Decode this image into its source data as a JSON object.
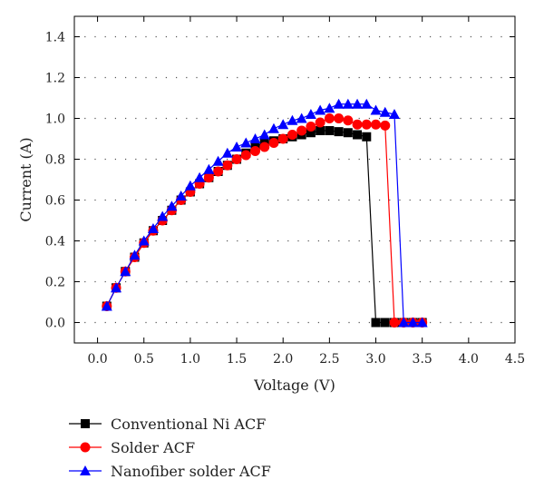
{
  "chart_data": {
    "type": "line",
    "xlabel": "Voltage (V)",
    "ylabel": "Current (A)",
    "xlim": [
      -0.25,
      4.5
    ],
    "ylim": [
      -0.1,
      1.5
    ],
    "xticks": [
      0.0,
      0.5,
      1.0,
      1.5,
      2.0,
      2.5,
      3.0,
      3.5,
      4.0,
      4.5
    ],
    "xtick_labels": [
      "0.0",
      "0.5",
      "1.0",
      "1.5",
      "2.0",
      "2.5",
      "3.0",
      "3.5",
      "4.0",
      "4.5"
    ],
    "yticks": [
      0.0,
      0.2,
      0.4,
      0.6,
      0.8,
      1.0,
      1.2,
      1.4
    ],
    "ytick_labels": [
      "0.0",
      "0.2",
      "0.4",
      "0.6",
      "0.8",
      "1.0",
      "1.2",
      "1.4"
    ],
    "grid": "horizontal-dotted",
    "legend_placement": "bottom",
    "series": [
      {
        "name": "Conventional Ni ACF",
        "color": "#000000",
        "marker": "square",
        "x": [
          0.1,
          0.2,
          0.3,
          0.4,
          0.5,
          0.6,
          0.7,
          0.8,
          0.9,
          1.0,
          1.1,
          1.2,
          1.3,
          1.4,
          1.5,
          1.6,
          1.7,
          1.8,
          1.9,
          2.0,
          2.1,
          2.2,
          2.3,
          2.4,
          2.5,
          2.6,
          2.7,
          2.8,
          2.9,
          3.0,
          3.1,
          3.2,
          3.3,
          3.4,
          3.5
        ],
        "y": [
          0.08,
          0.17,
          0.25,
          0.32,
          0.39,
          0.45,
          0.5,
          0.55,
          0.6,
          0.64,
          0.68,
          0.71,
          0.74,
          0.77,
          0.8,
          0.83,
          0.86,
          0.88,
          0.89,
          0.9,
          0.91,
          0.92,
          0.93,
          0.94,
          0.94,
          0.935,
          0.93,
          0.92,
          0.91,
          0.0,
          0.0,
          0.0,
          0.0,
          0.0,
          0.0
        ]
      },
      {
        "name": "Solder ACF",
        "color": "#ff0000",
        "marker": "circle",
        "x": [
          0.1,
          0.2,
          0.3,
          0.4,
          0.5,
          0.6,
          0.7,
          0.8,
          0.9,
          1.0,
          1.1,
          1.2,
          1.3,
          1.4,
          1.5,
          1.6,
          1.7,
          1.8,
          1.9,
          2.0,
          2.1,
          2.2,
          2.3,
          2.4,
          2.5,
          2.6,
          2.7,
          2.8,
          2.9,
          3.0,
          3.1,
          3.2,
          3.3,
          3.4,
          3.5
        ],
        "y": [
          0.08,
          0.17,
          0.25,
          0.32,
          0.39,
          0.45,
          0.5,
          0.55,
          0.6,
          0.64,
          0.68,
          0.71,
          0.74,
          0.77,
          0.8,
          0.82,
          0.84,
          0.86,
          0.88,
          0.9,
          0.92,
          0.94,
          0.96,
          0.98,
          1.0,
          1.0,
          0.99,
          0.97,
          0.97,
          0.97,
          0.965,
          0.0,
          0.0,
          0.0,
          0.0
        ]
      },
      {
        "name": "Nanofiber solder ACF",
        "color": "#0000ff",
        "marker": "triangle",
        "x": [
          0.1,
          0.2,
          0.3,
          0.4,
          0.5,
          0.6,
          0.7,
          0.8,
          0.9,
          1.0,
          1.1,
          1.2,
          1.3,
          1.4,
          1.5,
          1.6,
          1.7,
          1.8,
          1.9,
          2.0,
          2.1,
          2.2,
          2.3,
          2.4,
          2.5,
          2.6,
          2.7,
          2.8,
          2.9,
          3.0,
          3.1,
          3.2,
          3.3,
          3.4,
          3.5
        ],
        "y": [
          0.08,
          0.17,
          0.25,
          0.33,
          0.4,
          0.46,
          0.52,
          0.57,
          0.62,
          0.67,
          0.71,
          0.75,
          0.79,
          0.83,
          0.86,
          0.88,
          0.9,
          0.92,
          0.95,
          0.97,
          0.99,
          1.0,
          1.02,
          1.04,
          1.05,
          1.07,
          1.07,
          1.07,
          1.07,
          1.04,
          1.03,
          1.02,
          0.0,
          0.0,
          0.0
        ]
      }
    ]
  }
}
